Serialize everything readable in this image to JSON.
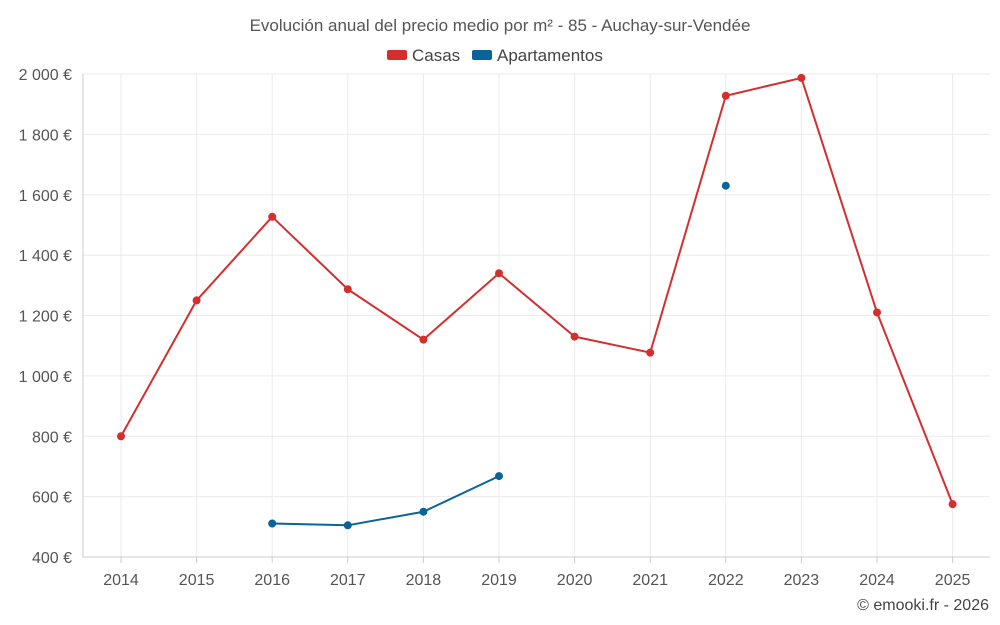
{
  "chart_data": {
    "type": "line",
    "title": "Evolución anual del precio medio por m² - 85 - Auchay-sur-Vendée",
    "categories": [
      "2014",
      "2015",
      "2016",
      "2017",
      "2018",
      "2019",
      "2020",
      "2021",
      "2022",
      "2023",
      "2024",
      "2025"
    ],
    "ylim": [
      400,
      2000
    ],
    "yticks": [
      400,
      600,
      800,
      1000,
      1200,
      1400,
      1600,
      1800,
      2000
    ],
    "ytick_labels": [
      "400 €",
      "600 €",
      "800 €",
      "1 000 €",
      "1 200 €",
      "1 400 €",
      "1 600 €",
      "1 800 €",
      "2 000 €"
    ],
    "grid": true,
    "legend_position": "top-center",
    "series": [
      {
        "name": "Casas",
        "color": "#d32f2f",
        "values": [
          800,
          1250,
          1527,
          1287,
          1120,
          1340,
          1130,
          1077,
          1928,
          1987,
          1210,
          575
        ]
      },
      {
        "name": "Apartamentos",
        "color": "#0a6399",
        "values": [
          null,
          null,
          511,
          505,
          550,
          668,
          null,
          null,
          1630,
          null,
          null,
          null
        ]
      }
    ]
  },
  "credit": "© emooki.fr - 2026"
}
